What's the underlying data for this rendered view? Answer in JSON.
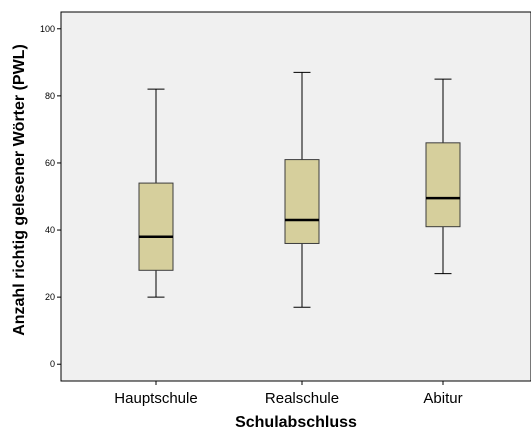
{
  "chart_data": {
    "type": "boxplot",
    "xlabel": "Schulabschluss",
    "ylabel": "Anzahl richtig gelesener Wörter (PWL)",
    "ylim": [
      -5,
      105
    ],
    "yticks": [
      0,
      20,
      40,
      60,
      80,
      100
    ],
    "grid": false,
    "categories": [
      "Hauptschule",
      "Realschule",
      "Abitur"
    ],
    "boxes": [
      {
        "category": "Hauptschule",
        "whisker_low": 20,
        "q1": 28,
        "median": 38,
        "q3": 54,
        "whisker_high": 82
      },
      {
        "category": "Realschule",
        "whisker_low": 17,
        "q1": 36,
        "median": 43,
        "q3": 61,
        "whisker_high": 87
      },
      {
        "category": "Abitur",
        "whisker_low": 27,
        "q1": 41,
        "median": 49.5,
        "q3": 66,
        "whisker_high": 85
      }
    ],
    "colors": {
      "plot_background": "#f0f0f0",
      "box_fill": "#d6cf9c",
      "box_stroke": "#3c3c3c",
      "median": "#000000"
    }
  }
}
